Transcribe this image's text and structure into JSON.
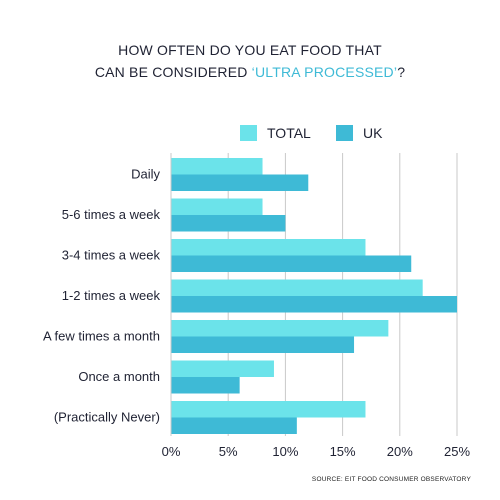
{
  "title": {
    "line1": "HOW OFTEN DO YOU EAT FOOD THAT",
    "line2_pre": "CAN BE CONSIDERED ",
    "line2_highlight": "‘ULTRA PROCESSED’",
    "line2_post": "?"
  },
  "colors": {
    "total": "#6be3ea",
    "uk": "#3ebad6",
    "highlight": "#3ebad6",
    "grid": "#c9c9c9",
    "text": "#1f2233"
  },
  "legend": {
    "total_label": "TOTAL",
    "uk_label": "UK"
  },
  "source": "SOURCE: EIT FOOD CONSUMER OBSERVATORY",
  "chart_data": {
    "type": "bar",
    "orientation": "horizontal",
    "categories": [
      "Daily",
      "5-6 times a week",
      "3-4 times a week",
      "1-2 times a week",
      "A few times a month",
      "Once a month",
      "(Practically Never)"
    ],
    "series": [
      {
        "name": "TOTAL",
        "values": [
          8,
          8,
          17,
          22,
          19,
          9,
          17
        ]
      },
      {
        "name": "UK",
        "values": [
          12,
          10,
          21,
          25,
          16,
          6,
          11
        ]
      }
    ],
    "xlim": [
      0,
      25
    ],
    "xticks": [
      "0%",
      "5%",
      "10%",
      "15%",
      "20%",
      "25%"
    ],
    "grid": true,
    "legend_position": "top"
  }
}
